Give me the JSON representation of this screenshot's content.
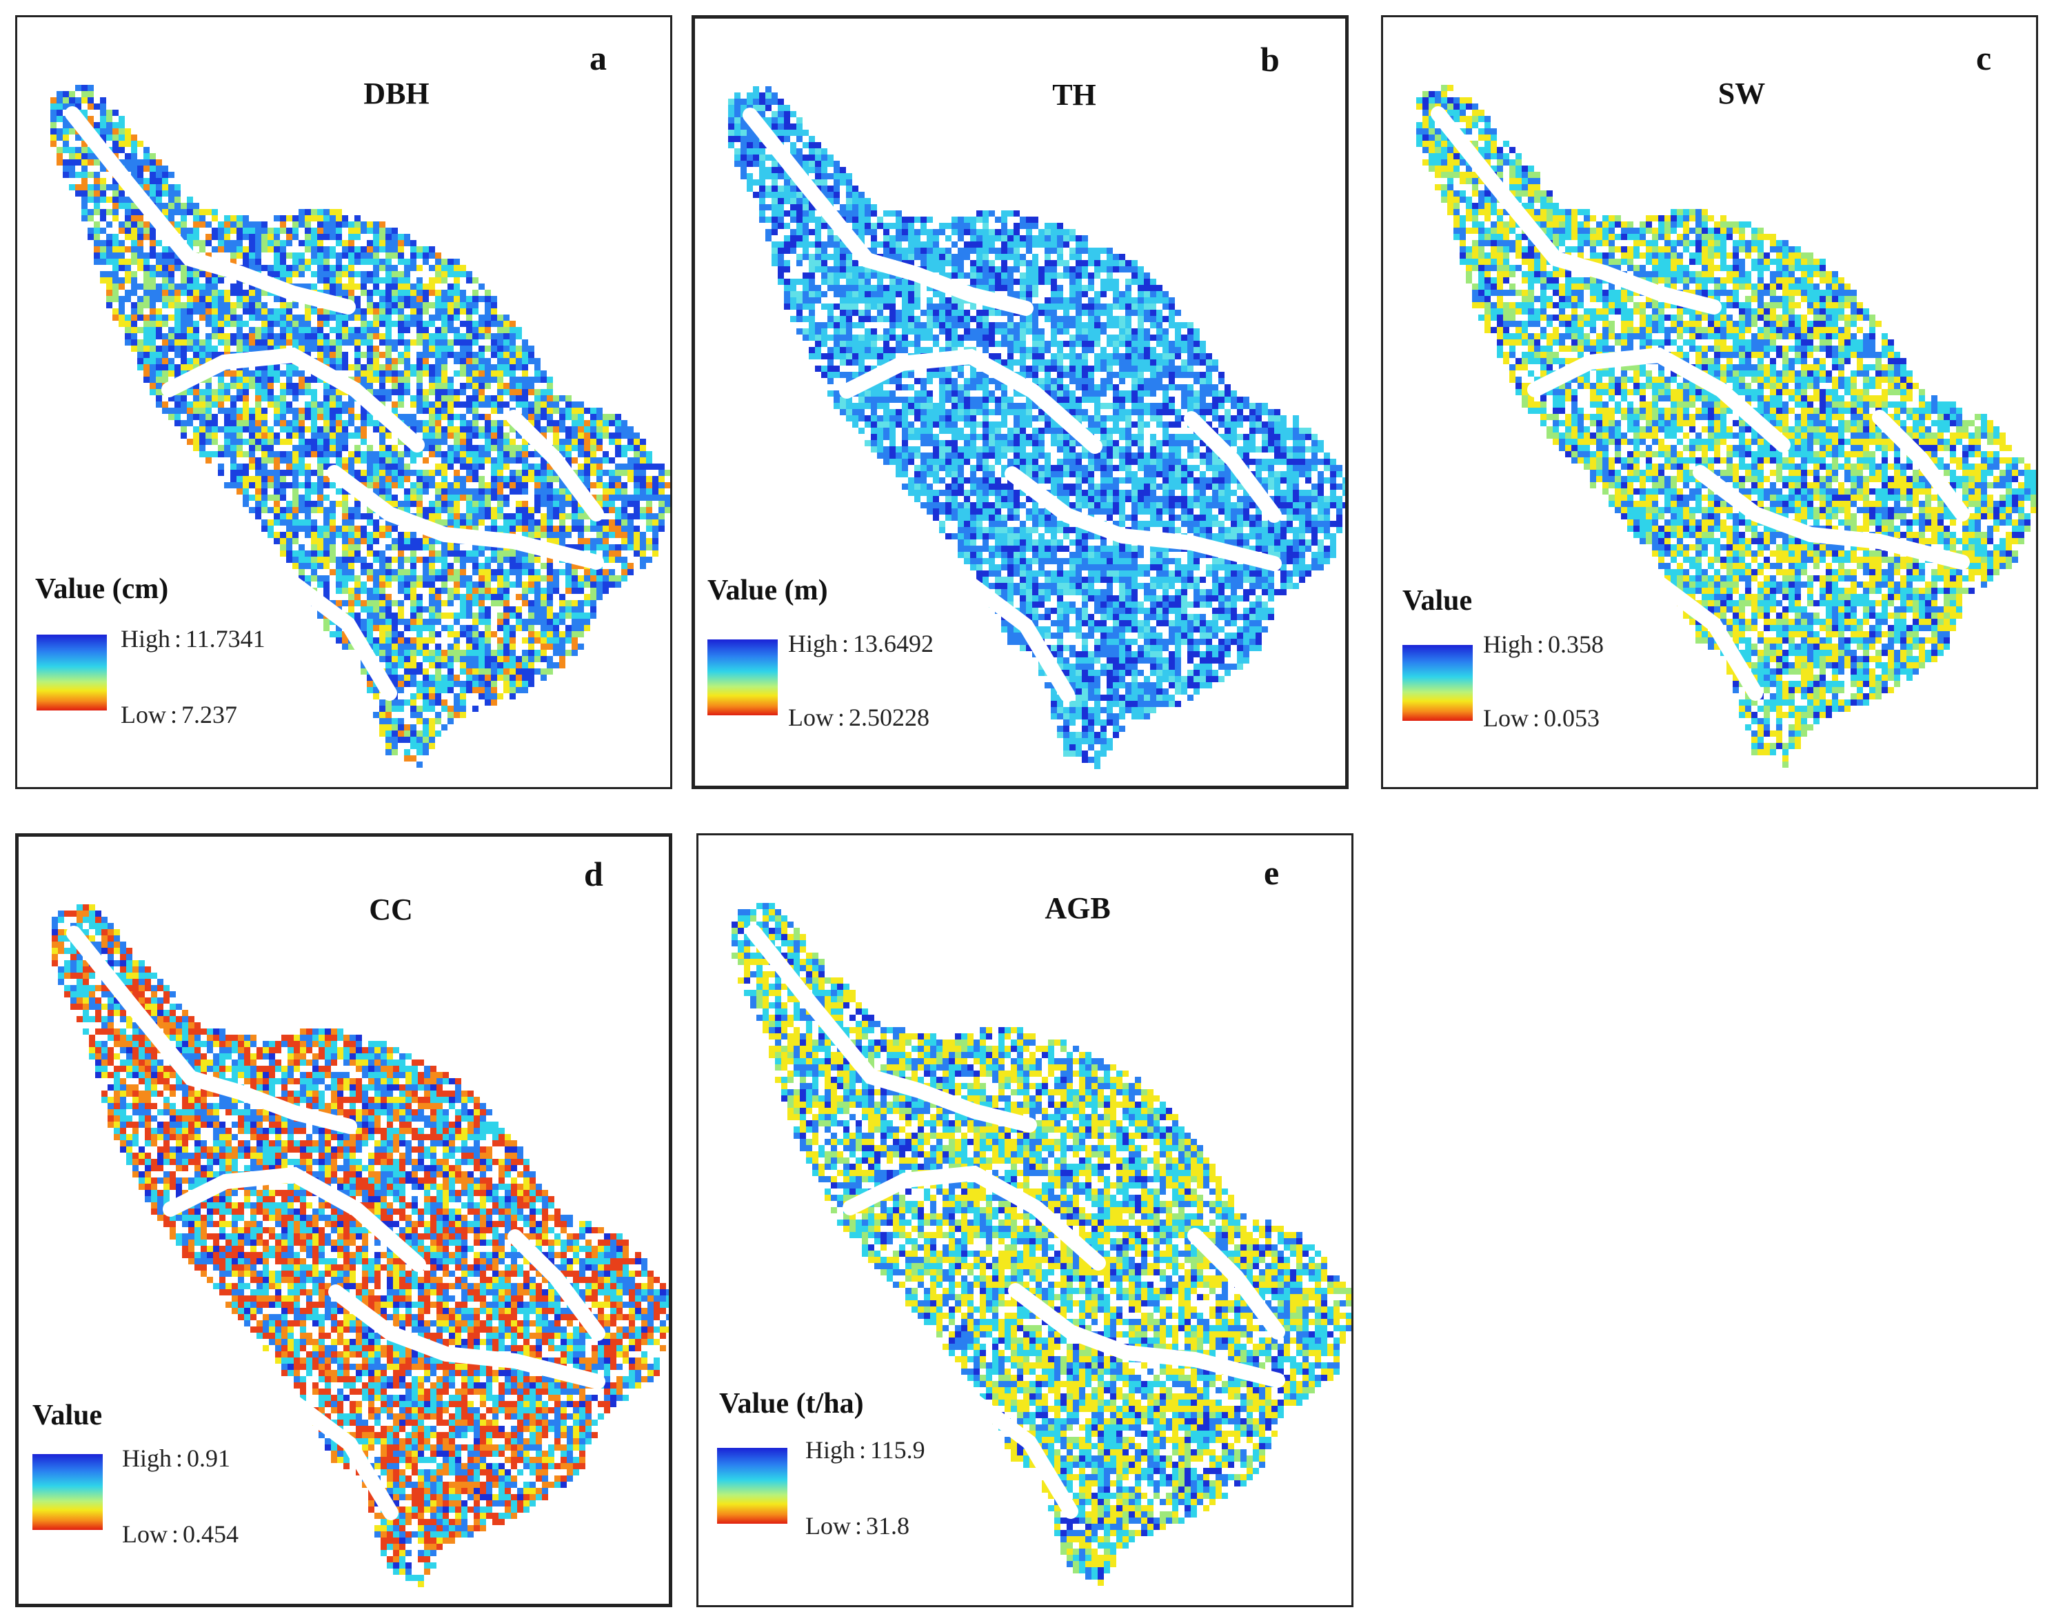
{
  "panels": [
    {
      "letter": "a",
      "title": "DBH",
      "legend_title": "Value (cm)",
      "high_label": "High",
      "high": "11.7341",
      "low_label": "Low",
      "low": "7.237",
      "sep": ":"
    },
    {
      "letter": "b",
      "title": "TH",
      "legend_title": "Value (m)",
      "high_label": "High",
      "high": "13.6492",
      "low_label": "Low",
      "low": "2.50228",
      "sep": ":"
    },
    {
      "letter": "c",
      "title": "SW",
      "legend_title": "Value",
      "high_label": "High",
      "high": "0.358",
      "low_label": "Low",
      "low": "0.053",
      "sep": ":"
    },
    {
      "letter": "d",
      "title": "CC",
      "legend_title": "Value",
      "high_label": "High",
      "high": "0.91",
      "low_label": "Low",
      "low": "0.454",
      "sep": ":"
    },
    {
      "letter": "e",
      "title": "AGB",
      "legend_title": "Value (t/ha)",
      "high_label": "High",
      "high": "115.9",
      "low_label": "Low",
      "low": "31.8",
      "sep": ":"
    }
  ],
  "colors": {
    "ramp_high": "#1a22d6",
    "ramp_mid": "#2fd3ea",
    "ramp_yellow": "#f4e81c",
    "ramp_low": "#e01e10"
  }
}
